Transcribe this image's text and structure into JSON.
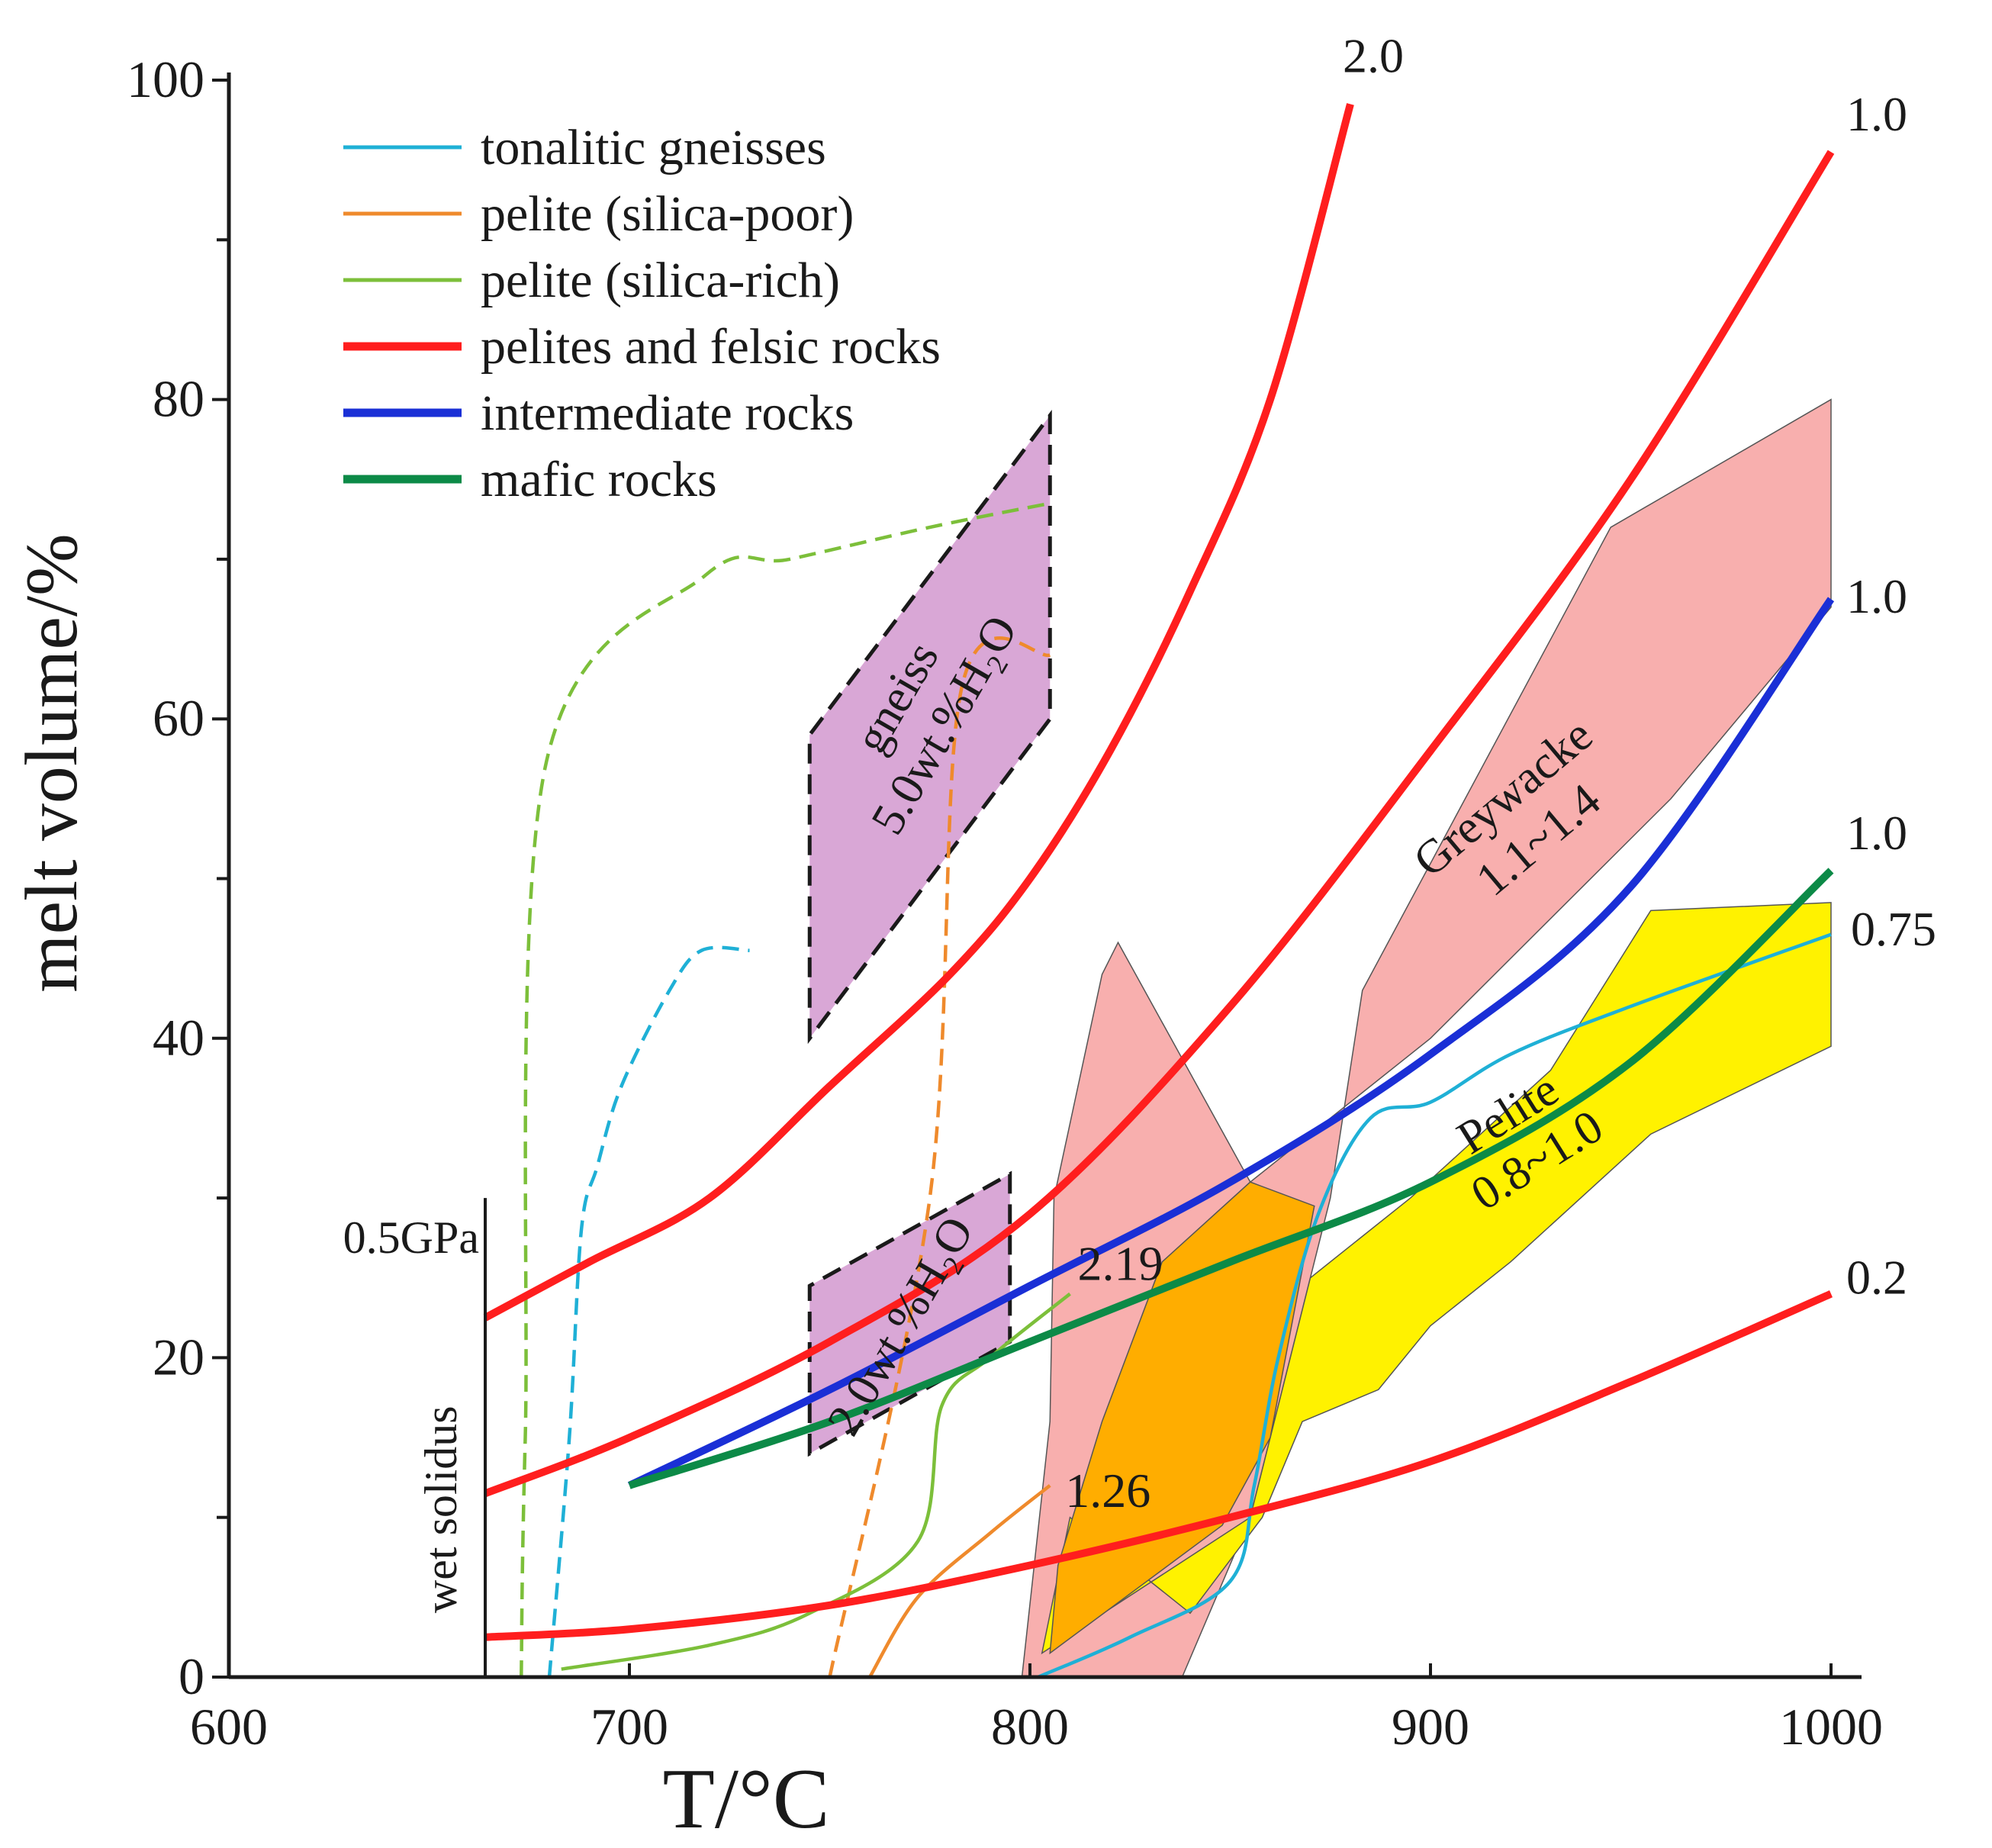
{
  "chart_data": {
    "type": "line",
    "xlabel": "T/°C",
    "ylabel": "melt volume/%",
    "xlim": [
      600,
      1000
    ],
    "ylim": [
      0,
      100
    ],
    "x_ticks": [
      600,
      700,
      800,
      900,
      1000
    ],
    "y_ticks": [
      0,
      20,
      40,
      60,
      80,
      100
    ],
    "legend": [
      {
        "label": "tonalitic gneisses",
        "color": "#1fb0d6",
        "weight": "thin"
      },
      {
        "label": "pelite (silica-poor)",
        "color": "#ef8a2c",
        "weight": "thin"
      },
      {
        "label": "pelite (silica-rich)",
        "color": "#7cbf3a",
        "weight": "thin"
      },
      {
        "label": "pelites and felsic rocks",
        "color": "#ff1e1e",
        "weight": "thick"
      },
      {
        "label": "intermediate rocks",
        "color": "#1a2fd6",
        "weight": "thick"
      },
      {
        "label": "mafic rocks",
        "color": "#0c8a47",
        "weight": "thick"
      }
    ],
    "wet_solidus": {
      "label": "wet solidus",
      "pressure_label": "0.5GPa",
      "x": 664,
      "y_range": [
        0,
        30
      ]
    },
    "regions": [
      {
        "name": "gneiss-5wt-region",
        "label_lines": [
          "gneiss",
          "5.0wt.%H₂O"
        ],
        "fill": "#d9a7d6",
        "stroke": "#1a1a1a",
        "dashed": true,
        "points": [
          [
            745,
            40
          ],
          [
            745,
            59
          ],
          [
            805,
            79
          ],
          [
            805,
            60
          ]
        ],
        "label_at": [
          776,
          60
        ],
        "label_rotate": -60
      },
      {
        "name": "gneiss-2wt-region",
        "label_lines": [
          "2.0wt.%H₂O"
        ],
        "fill": "#d9a7d6",
        "stroke": "#1a1a1a",
        "dashed": true,
        "points": [
          [
            745,
            14
          ],
          [
            745,
            24.5
          ],
          [
            795,
            31.5
          ],
          [
            795,
            21
          ]
        ],
        "label_at": [
          771,
          21.5
        ],
        "label_rotate": -60
      },
      {
        "name": "greywacke-region",
        "label_lines": [
          "Greywacke",
          "1.1~1.4"
        ],
        "fill": "#f8afae",
        "stroke": "#555555",
        "dashed": false,
        "points": [
          [
            798,
            0
          ],
          [
            838,
            0
          ],
          [
            855,
            10
          ],
          [
            875,
            30
          ],
          [
            883,
            43
          ],
          [
            945,
            72
          ],
          [
            1000,
            80
          ],
          [
            1000,
            67
          ],
          [
            960,
            55
          ],
          [
            900,
            40
          ],
          [
            855,
            31
          ],
          [
            822,
            46
          ],
          [
            818,
            44
          ],
          [
            806,
            30
          ],
          [
            805,
            16
          ]
        ],
        "label_at": [
          925,
          53
        ],
        "label_rotate": -40
      },
      {
        "name": "pelite-region",
        "label_lines": [
          "Pelite",
          "0.8~1.0"
        ],
        "fill": "#fff200",
        "stroke": "#555555",
        "dashed": false,
        "points": [
          [
            803,
            1.5
          ],
          [
            855,
            10
          ],
          [
            870,
            25
          ],
          [
            895,
            30
          ],
          [
            930,
            38
          ],
          [
            955,
            48
          ],
          [
            1000,
            48.5
          ],
          [
            1000,
            39.5
          ],
          [
            955,
            34
          ],
          [
            920,
            26
          ],
          [
            900,
            22
          ],
          [
            887,
            18
          ],
          [
            868,
            16
          ],
          [
            858,
            10
          ],
          [
            840,
            4
          ],
          [
            810,
            10
          ]
        ],
        "label_at": [
          925,
          33
        ],
        "label_rotate": -32
      },
      {
        "name": "overlap-region",
        "fill": "#ffad00",
        "stroke": "#555555",
        "dashed": false,
        "points": [
          [
            805,
            1.5
          ],
          [
            848,
            9.5
          ],
          [
            860,
            15
          ],
          [
            871,
            29.5
          ],
          [
            855,
            31
          ],
          [
            833,
            26
          ],
          [
            818,
            16
          ],
          [
            807,
            7
          ]
        ]
      }
    ],
    "series": [
      {
        "name": "tonalitic gneisses",
        "color": "#1fb0d6",
        "width": 4.5,
        "dash": "22 12",
        "points": [
          [
            680,
            0
          ],
          [
            685,
            15
          ],
          [
            688,
            28
          ],
          [
            692,
            32
          ],
          [
            698,
            37
          ],
          [
            710,
            43
          ],
          [
            718,
            45.5
          ],
          [
            730,
            45.5
          ]
        ]
      },
      {
        "name": "tonalitic gneisses",
        "color": "#1fb0d6",
        "width": 4.5,
        "dash": "",
        "points": [
          [
            802,
            0
          ],
          [
            825,
            2.5
          ],
          [
            850,
            6
          ],
          [
            856,
            12
          ],
          [
            862,
            20
          ],
          [
            872,
            29
          ],
          [
            885,
            35
          ],
          [
            900,
            36
          ],
          [
            920,
            39
          ],
          [
            950,
            42
          ],
          [
            1000,
            46.5
          ]
        ]
      },
      {
        "name": "pelite (silica-poor)",
        "color": "#ef8a2c",
        "width": 4.5,
        "dash": "22 12",
        "points": [
          [
            750,
            0
          ],
          [
            775,
            30
          ],
          [
            783,
            62
          ],
          [
            805,
            64
          ]
        ]
      },
      {
        "name": "pelite (silica-poor)",
        "color": "#ef8a2c",
        "width": 4.5,
        "dash": "",
        "points": [
          [
            760,
            0
          ],
          [
            772,
            5
          ],
          [
            790,
            9
          ],
          [
            805,
            12
          ]
        ]
      },
      {
        "name": "pelite (silica-rich)",
        "color": "#7cbf3a",
        "width": 4.5,
        "dash": "22 12",
        "points": [
          [
            673,
            0
          ],
          [
            674,
            15
          ],
          [
            679,
            57
          ],
          [
            719,
            69
          ],
          [
            740,
            70
          ],
          [
            775,
            72
          ],
          [
            805,
            73.5
          ]
        ]
      },
      {
        "name": "pelite (silica-rich)",
        "color": "#7cbf3a",
        "width": 4.5,
        "dash": "",
        "points": [
          [
            683,
            0.5
          ],
          [
            720,
            2
          ],
          [
            745,
            4
          ],
          [
            772,
            8.5
          ],
          [
            778,
            17
          ],
          [
            790,
            20
          ],
          [
            810,
            24
          ]
        ]
      },
      {
        "name": "pelites and felsic rocks",
        "label": "2.0",
        "color": "#ff1e1e",
        "width": 10,
        "dash": "",
        "points": [
          [
            664,
            22.5
          ],
          [
            690,
            26
          ],
          [
            720,
            30
          ],
          [
            750,
            37
          ],
          [
            780,
            44
          ],
          [
            800,
            50
          ],
          [
            820,
            58
          ],
          [
            840,
            68
          ],
          [
            860,
            80
          ],
          [
            880,
            98.5
          ]
        ]
      },
      {
        "name": "pelites and felsic rocks",
        "label": "1.0",
        "color": "#ff1e1e",
        "width": 10,
        "dash": "",
        "points": [
          [
            664,
            11.5
          ],
          [
            700,
            15
          ],
          [
            750,
            21
          ],
          [
            800,
            29
          ],
          [
            850,
            42
          ],
          [
            900,
            58
          ],
          [
            950,
            75
          ],
          [
            1000,
            95.5
          ]
        ]
      },
      {
        "name": "pelites and felsic rocks",
        "label": "0.2",
        "color": "#ff1e1e",
        "width": 10,
        "dash": "",
        "points": [
          [
            664,
            2.5
          ],
          [
            700,
            3
          ],
          [
            750,
            4.5
          ],
          [
            800,
            7
          ],
          [
            850,
            10
          ],
          [
            900,
            13.5
          ],
          [
            950,
            18.5
          ],
          [
            1000,
            24
          ]
        ]
      },
      {
        "name": "intermediate rocks",
        "label": "1.0",
        "color": "#1a2fd6",
        "width": 10,
        "dash": "",
        "points": [
          [
            700,
            12
          ],
          [
            750,
            18
          ],
          [
            800,
            24.5
          ],
          [
            850,
            31
          ],
          [
            900,
            39
          ],
          [
            950,
            49.5
          ],
          [
            1000,
            67.5
          ]
        ]
      },
      {
        "name": "mafic rocks",
        "label": "1.0",
        "color": "#0c8a47",
        "width": 10,
        "dash": "",
        "points": [
          [
            700,
            12
          ],
          [
            750,
            16
          ],
          [
            800,
            21
          ],
          [
            850,
            26
          ],
          [
            900,
            31
          ],
          [
            950,
            38.5
          ],
          [
            1000,
            50.5
          ]
        ]
      }
    ],
    "annotations": [
      {
        "text": "2.0",
        "x": 880,
        "y": 98.5
      },
      {
        "text": "1.0",
        "x": 1000,
        "y": 95.5
      },
      {
        "text": "1.0",
        "x": 1000,
        "y": 67.5
      },
      {
        "text": "1.0",
        "x": 1000,
        "y": 50.5
      },
      {
        "text": "0.75",
        "x": 1000,
        "y": 46.5
      },
      {
        "text": "0.2",
        "x": 1000,
        "y": 24
      },
      {
        "text": "2.19",
        "x": 810,
        "y": 24
      },
      {
        "text": "1.26",
        "x": 805,
        "y": 12
      }
    ]
  }
}
